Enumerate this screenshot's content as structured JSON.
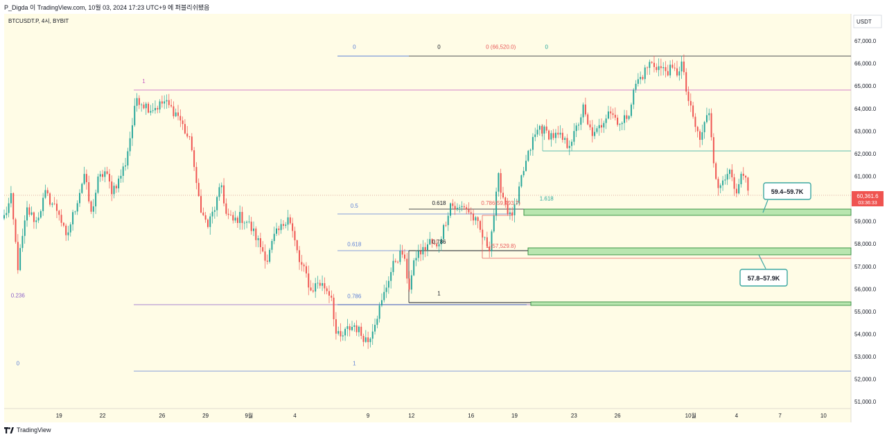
{
  "header": {
    "publish_line": "P_Digda 이 TradingView.com, 10월 03, 2024 17:23 UTC+9 에 퍼블리쉬됐음",
    "symbol_line": "BTCUSDT.P, 4시, BYBIT"
  },
  "footer": {
    "brand": "TradingView"
  },
  "colors": {
    "background": "#fffce6",
    "up": "#26a69a",
    "down": "#ef5350",
    "fib_blue": "#5b7fd6",
    "fib_purple": "#8a5ec8",
    "fib_magenta": "#c75ac2",
    "fib_red": "#e85a5a",
    "fib_teal": "#26a69a",
    "zone_fill": "#b9e6b0",
    "zone_stroke": "#2e8b3a",
    "callout_border": "#3aa6a0"
  },
  "chart_data": {
    "type": "candlestick",
    "title": "BTCUSDT.P, 4시, BYBIT",
    "currency_label": "USDT",
    "y_range": [
      50700,
      68200
    ],
    "y_ticks": [
      "67,000.0",
      "66,000.0",
      "65,000.0",
      "64,000.0",
      "63,000.0",
      "62,000.0",
      "61,000.0",
      "60,000.0",
      "59,000.0",
      "58,000.0",
      "57,000.0",
      "56,000.0",
      "55,000.0",
      "54,000.0",
      "53,000.0",
      "52,000.0",
      "51,000.0"
    ],
    "y_tick_values": [
      67000,
      66000,
      65000,
      64000,
      63000,
      62000,
      61000,
      60000,
      59000,
      58000,
      57000,
      56000,
      55000,
      54000,
      53000,
      52000,
      51000
    ],
    "x_range_bar": [
      0,
      370
    ],
    "x_ticks": [
      {
        "label": "19",
        "bar": 24
      },
      {
        "label": "22",
        "bar": 43
      },
      {
        "label": "26",
        "bar": 69
      },
      {
        "label": "29",
        "bar": 88
      },
      {
        "label": "9월",
        "bar": 107
      },
      {
        "label": "4",
        "bar": 127
      },
      {
        "label": "9",
        "bar": 159
      },
      {
        "label": "12",
        "bar": 178
      },
      {
        "label": "16",
        "bar": 204
      },
      {
        "label": "19",
        "bar": 223
      },
      {
        "label": "23",
        "bar": 249
      },
      {
        "label": "26",
        "bar": 268
      },
      {
        "label": "10월",
        "bar": 300
      },
      {
        "label": "4",
        "bar": 320
      },
      {
        "label": "7",
        "bar": 339
      },
      {
        "label": "10",
        "bar": 358
      }
    ],
    "price_path": [
      [
        0,
        59200
      ],
      [
        3,
        60000
      ],
      [
        6,
        57000
      ],
      [
        10,
        59500
      ],
      [
        14,
        59000
      ],
      [
        18,
        60200
      ],
      [
        24,
        59400
      ],
      [
        27,
        58200
      ],
      [
        31,
        59600
      ],
      [
        35,
        61100
      ],
      [
        38,
        59300
      ],
      [
        41,
        60800
      ],
      [
        44,
        61200
      ],
      [
        47,
        60400
      ],
      [
        50,
        60800
      ],
      [
        53,
        61600
      ],
      [
        56,
        63300
      ],
      [
        58,
        64500
      ],
      [
        61,
        64200
      ],
      [
        64,
        64000
      ],
      [
        67,
        64100
      ],
      [
        70,
        64300
      ],
      [
        73,
        64000
      ],
      [
        76,
        63700
      ],
      [
        79,
        63000
      ],
      [
        82,
        62300
      ],
      [
        84,
        60500
      ],
      [
        87,
        59200
      ],
      [
        89,
        58800
      ],
      [
        92,
        59600
      ],
      [
        95,
        60600
      ],
      [
        97,
        59300
      ],
      [
        100,
        59000
      ],
      [
        103,
        59200
      ],
      [
        106,
        59000
      ],
      [
        109,
        58500
      ],
      [
        112,
        57900
      ],
      [
        115,
        57300
      ],
      [
        118,
        58300
      ],
      [
        121,
        58700
      ],
      [
        124,
        59300
      ],
      [
        126,
        58500
      ],
      [
        129,
        57200
      ],
      [
        132,
        56600
      ],
      [
        134,
        55900
      ],
      [
        137,
        56300
      ],
      [
        140,
        56100
      ],
      [
        143,
        55700
      ],
      [
        145,
        54000
      ],
      [
        147,
        53800
      ],
      [
        150,
        54200
      ],
      [
        153,
        54400
      ],
      [
        156,
        54000
      ],
      [
        159,
        53700
      ],
      [
        162,
        54600
      ],
      [
        165,
        55400
      ],
      [
        168,
        56500
      ],
      [
        171,
        57300
      ],
      [
        174,
        57600
      ],
      [
        177,
        56100
      ],
      [
        180,
        57500
      ],
      [
        183,
        57700
      ],
      [
        186,
        58100
      ],
      [
        189,
        57800
      ],
      [
        192,
        58700
      ],
      [
        195,
        59800
      ],
      [
        198,
        59500
      ],
      [
        201,
        59700
      ],
      [
        204,
        59300
      ],
      [
        207,
        58800
      ],
      [
        210,
        58100
      ],
      [
        212,
        57900
      ],
      [
        214,
        59300
      ],
      [
        216,
        60900
      ],
      [
        218,
        60100
      ],
      [
        221,
        59200
      ],
      [
        224,
        59700
      ],
      [
        226,
        60900
      ],
      [
        228,
        61600
      ],
      [
        231,
        62600
      ],
      [
        234,
        63200
      ],
      [
        237,
        62900
      ],
      [
        240,
        62800
      ],
      [
        243,
        62700
      ],
      [
        246,
        62400
      ],
      [
        249,
        62800
      ],
      [
        251,
        63400
      ],
      [
        253,
        64000
      ],
      [
        255,
        63200
      ],
      [
        258,
        62800
      ],
      [
        261,
        63300
      ],
      [
        264,
        64000
      ],
      [
        267,
        63600
      ],
      [
        270,
        63300
      ],
      [
        273,
        63900
      ],
      [
        276,
        65100
      ],
      [
        279,
        65500
      ],
      [
        282,
        66000
      ],
      [
        285,
        65900
      ],
      [
        288,
        65700
      ],
      [
        291,
        65700
      ],
      [
        294,
        65600
      ],
      [
        296,
        66000
      ],
      [
        298,
        64800
      ],
      [
        300,
        63900
      ],
      [
        302,
        63200
      ],
      [
        304,
        62600
      ],
      [
        306,
        63300
      ],
      [
        308,
        63900
      ],
      [
        310,
        61800
      ],
      [
        312,
        60300
      ],
      [
        314,
        60900
      ],
      [
        316,
        61300
      ],
      [
        318,
        60800
      ],
      [
        320,
        60000
      ],
      [
        322,
        61000
      ],
      [
        324,
        60700
      ],
      [
        325,
        60361
      ]
    ],
    "current_price_label": "60,361.6",
    "countdown_label": "03:36:33",
    "current_price": 60361.6,
    "annotations": {
      "fib_labels": [
        {
          "text": "1",
          "bar": 61,
          "price": 65000
        },
        {
          "text": "0",
          "bar": 6,
          "price": 52500
        },
        {
          "text": "0.236",
          "bar": 6,
          "price": 55500
        },
        {
          "text": "0",
          "bar": 153,
          "price": 66520
        },
        {
          "text": "0.5",
          "bar": 153,
          "price": 59480
        },
        {
          "text": "0.618",
          "bar": 153,
          "price": 57780
        },
        {
          "text": "0.786",
          "bar": 153,
          "price": 55480
        },
        {
          "text": "1",
          "bar": 153,
          "price": 52500
        },
        {
          "text": "0",
          "bar": 190,
          "price": 66520
        },
        {
          "text": "0.618",
          "bar": 190,
          "price": 59600
        },
        {
          "text": "0.786",
          "bar": 190,
          "price": 57880
        },
        {
          "text": "1",
          "bar": 190,
          "price": 55600
        },
        {
          "text": "0 (66,520.0)",
          "bar": 217,
          "price": 66520
        },
        {
          "text": "0.786(59,493.7)",
          "bar": 217,
          "price": 59600
        },
        {
          "text": "1 (57,529.8)",
          "bar": 217,
          "price": 57700
        },
        {
          "text": "0",
          "bar": 237,
          "price": 66520
        },
        {
          "text": "1.618",
          "bar": 237,
          "price": 59800
        }
      ],
      "zone_callouts": [
        "59.4–59.7K",
        "57.8–57.9K"
      ]
    }
  }
}
